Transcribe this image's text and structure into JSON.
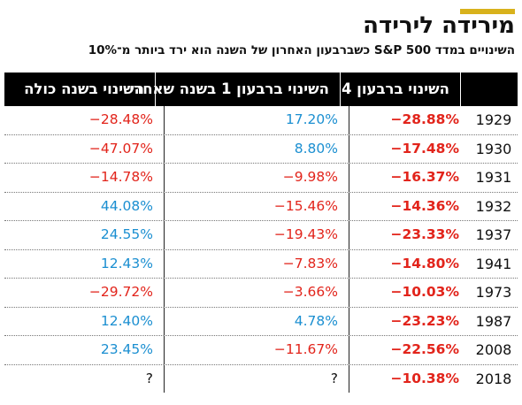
{
  "title": "מירידה לירידה",
  "subtitle": "השינויים במדד S&P 500 כשברבעון האחרון של השנה הוא ירד ביותר מ־10%",
  "colors": {
    "accent": "#d8b21c",
    "positive": "#1b8fd1",
    "negative": "#e2241b",
    "header_bg": "#000000"
  },
  "chart_data": {
    "type": "table",
    "columns": [
      "השינוי בשנה כולה",
      "השינוי ברבעון 1 בשנה שאחרי",
      "השינוי ברבעון 4",
      ""
    ],
    "rows": [
      {
        "year": "1929",
        "q4": "−28.88%",
        "q1_next": "17.20%",
        "full_year": "−28.48%"
      },
      {
        "year": "1930",
        "q4": "−17.48%",
        "q1_next": "8.80%",
        "full_year": "−47.07%"
      },
      {
        "year": "1931",
        "q4": "−16.37%",
        "q1_next": "−9.98%",
        "full_year": "−14.78%"
      },
      {
        "year": "1932",
        "q4": "−14.36%",
        "q1_next": "−15.46%",
        "full_year": "44.08%"
      },
      {
        "year": "1937",
        "q4": "−23.33%",
        "q1_next": "−19.43%",
        "full_year": "24.55%"
      },
      {
        "year": "1941",
        "q4": "−14.80%",
        "q1_next": "−7.83%",
        "full_year": "12.43%"
      },
      {
        "year": "1973",
        "q4": "−10.03%",
        "q1_next": "−3.66%",
        "full_year": "−29.72%"
      },
      {
        "year": "1987",
        "q4": "−23.23%",
        "q1_next": "4.78%",
        "full_year": "12.40%"
      },
      {
        "year": "2008",
        "q4": "−22.56%",
        "q1_next": "−11.67%",
        "full_year": "23.45%"
      },
      {
        "year": "2018",
        "q4": "−10.38%",
        "q1_next": "?",
        "full_year": "?"
      }
    ]
  }
}
